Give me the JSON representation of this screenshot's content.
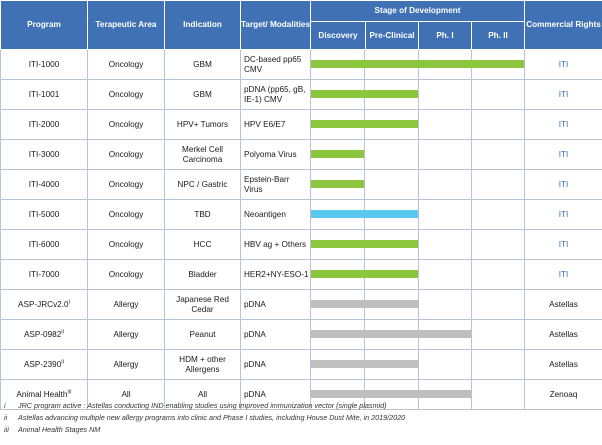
{
  "header": {
    "program": "Program",
    "area": "Terapeutic Area",
    "indication": "Indication",
    "target": "Target/ Modalities",
    "stage": "Stage of Development",
    "rights": "Commercial Rights",
    "stages": [
      "Discovery",
      "Pre-Clinical",
      "Ph. I",
      "Ph. II"
    ]
  },
  "colors": {
    "header_bg": "#3f71b4",
    "green": "#8cc63f",
    "blue": "#5bc8f0",
    "gray": "#bfbfbf",
    "iti_text": "#2f6fb5"
  },
  "rows": [
    {
      "program": "ITI-1000",
      "sup": "",
      "area": "Oncology",
      "indication": "GBM",
      "target": "DC-based pp65 CMV",
      "progress": 1.0,
      "bar": "green",
      "rights": "ITI"
    },
    {
      "program": "ITI-1001",
      "sup": "",
      "area": "Oncology",
      "indication": "GBM",
      "target": "pDNA (pp65, gB, IE-1) CMV",
      "progress": 0.5,
      "bar": "green",
      "rights": "ITI"
    },
    {
      "program": "ITI-2000",
      "sup": "",
      "area": "Oncology",
      "indication": "HPV+ Tumors",
      "target": "HPV E6/E7",
      "progress": 0.5,
      "bar": "green",
      "rights": "ITI"
    },
    {
      "program": "ITI-3000",
      "sup": "",
      "area": "Oncology",
      "indication": "Merkel Cell Carcinoma",
      "target": "Polyoma Virus",
      "progress": 0.25,
      "bar": "green",
      "rights": "ITI"
    },
    {
      "program": "ITI-4000",
      "sup": "",
      "area": "Oncology",
      "indication": "NPC / Gastric",
      "target": "Epstein-Barr Virus",
      "progress": 0.25,
      "bar": "green",
      "rights": "ITI"
    },
    {
      "program": "ITI-5000",
      "sup": "",
      "area": "Oncology",
      "indication": "TBD",
      "target": "Neoantigen",
      "progress": 0.5,
      "bar": "blue",
      "rights": "ITI"
    },
    {
      "program": "ITI-6000",
      "sup": "",
      "area": "Oncology",
      "indication": "HCC",
      "target": "HBV ag + Others",
      "progress": 0.5,
      "bar": "green",
      "rights": "ITI"
    },
    {
      "program": "ITI-7000",
      "sup": "",
      "area": "Oncology",
      "indication": "Bladder",
      "target": "HER2+NY-ESO-1",
      "progress": 0.5,
      "bar": "green",
      "rights": "ITI"
    },
    {
      "program": "ASP-JRCv2.0",
      "sup": "I",
      "area": "Allergy",
      "indication": "Japanese Red Cedar",
      "target": "pDNA",
      "progress": 0.5,
      "bar": "gray",
      "rights": "Astellas"
    },
    {
      "program": "ASP-0982",
      "sup": "II",
      "area": "Allergy",
      "indication": "Peanut",
      "target": "pDNA",
      "progress": 0.75,
      "bar": "gray",
      "rights": "Astellas"
    },
    {
      "program": "ASP-2390",
      "sup": "II",
      "area": "Allergy",
      "indication": "HDM + other Allergens",
      "target": "pDNA",
      "progress": 0.5,
      "bar": "gray",
      "rights": "Astellas"
    },
    {
      "program": "Animal Health",
      "sup": "III",
      "area": "All",
      "indication": "All",
      "target": "pDNA",
      "progress": 0.75,
      "bar": "gray",
      "rights": "Zenoaq"
    }
  ],
  "footnotes": [
    {
      "num": "i",
      "text": "JRC program active : Astellas conducting IND enabling studies using improved immunization vector (single plasmid)"
    },
    {
      "num": "ii",
      "text": "Astellas advancing multiple new allergy programs into clinic and Phase I studies, including House Dust Mite, in 2019/2020"
    },
    {
      "num": "iii",
      "text": "Animal Health Stages NM"
    }
  ]
}
